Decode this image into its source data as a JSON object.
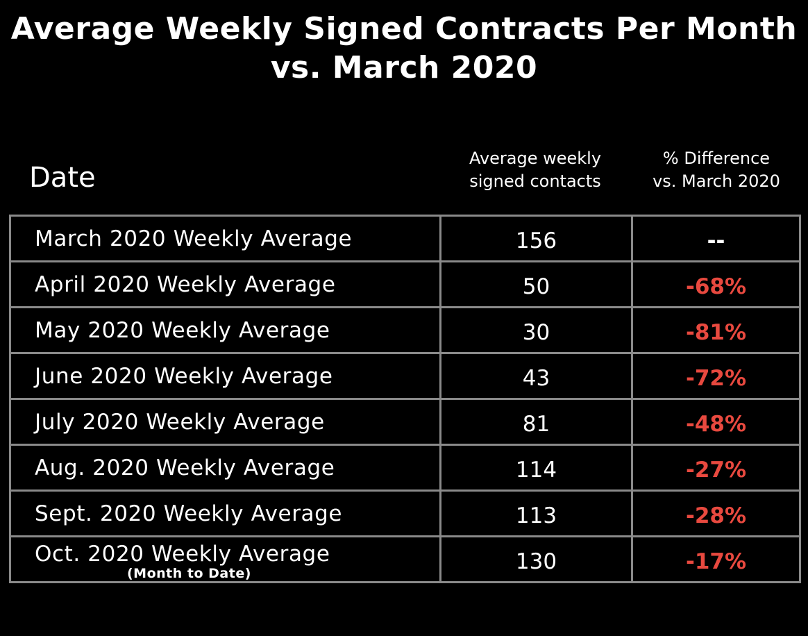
{
  "title": {
    "line1": "Average Weekly Signed Contracts Per Month",
    "line2": "vs. March 2020"
  },
  "headers": {
    "date": "Date",
    "value_line1": "Average weekly",
    "value_line2": "signed contacts",
    "pct_line1": "% Difference",
    "pct_line2": "vs. March 2020"
  },
  "colors": {
    "background": "#000000",
    "text": "#ffffff",
    "negative": "#e8493f",
    "grid": "#8a8a8a"
  },
  "chart_data": {
    "type": "table",
    "title": "Average Weekly Signed Contracts Per Month vs. March 2020",
    "columns": [
      "Date",
      "Average weekly signed contacts",
      "% Difference vs. March 2020"
    ],
    "rows": [
      {
        "date": "March 2020 Weekly Average",
        "note": "",
        "value": "156",
        "pct": "--"
      },
      {
        "date": "April 2020 Weekly Average",
        "note": "",
        "value": "50",
        "pct": "-68%"
      },
      {
        "date": "May 2020 Weekly Average",
        "note": "",
        "value": "30",
        "pct": "-81%"
      },
      {
        "date": "June 2020 Weekly Average",
        "note": "",
        "value": "43",
        "pct": "-72%"
      },
      {
        "date": "July 2020 Weekly Average",
        "note": "",
        "value": "81",
        "pct": "-48%"
      },
      {
        "date": "Aug. 2020 Weekly Average",
        "note": "",
        "value": "114",
        "pct": "-27%"
      },
      {
        "date": "Sept. 2020 Weekly Average",
        "note": "",
        "value": "113",
        "pct": "-28%"
      },
      {
        "date": "Oct. 2020 Weekly Average",
        "note": "(Month to Date)",
        "value": "130",
        "pct": "-17%"
      }
    ]
  }
}
